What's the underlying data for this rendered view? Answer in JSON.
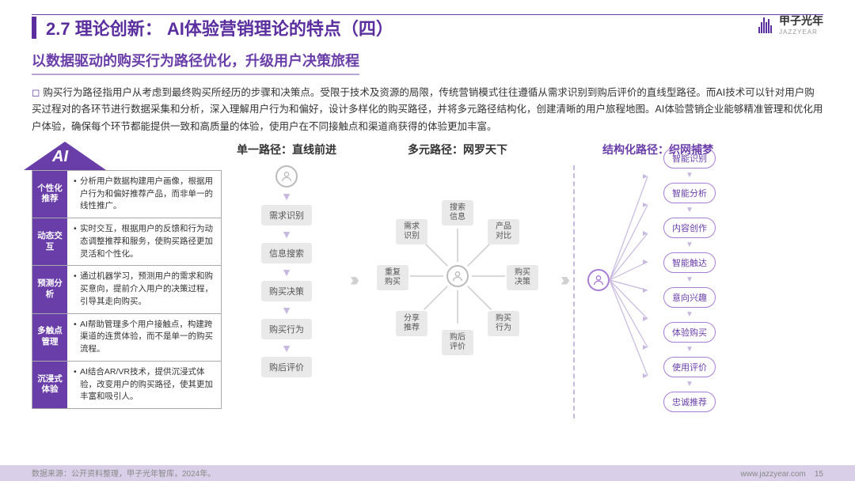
{
  "header": {
    "section_no": "2.7",
    "section_label": "理论创新：",
    "title_main": "AI体验营销理论的特点（四）"
  },
  "logo": {
    "brand": "甲子光年",
    "sub": "JAZZYEAR"
  },
  "subtitle": "以数据驱动的购买行为路径优化，升级用户决策旅程",
  "paragraph": "购买行为路径指用户从考虑到最终购买所经历的步骤和决策点。受限于技术及资源的局限，传统营销模式往往遵循从需求识别到购后评价的直线型路径。而AI技术可以针对用户购买过程对的各环节进行数据采集和分析，深入理解用户行为和偏好，设计多样化的购买路径，并将多元路径结构化，创建清晰的用户旅程地图。AI体验营销企业能够精准管理和优化用户体验，确保每个环节都能提供一致和高质量的体验，使用户在不同接触点和渠道商获得的体验更加丰富。",
  "ai_label": "AI",
  "features": [
    {
      "label": "个性化\n推荐",
      "desc": "分析用户数据构建用户画像，根据用户行为和偏好推荐产品，而非单一的线性推广。"
    },
    {
      "label": "动态交互",
      "desc": "实时交互，根据用户的反馈和行为动态调整推荐和服务，使购买路径更加灵活和个性化。"
    },
    {
      "label": "预测分析",
      "desc": "通过机器学习，预测用户的需求和购买意向，提前介入用户的决策过程，引导其走向购买。"
    },
    {
      "label": "多触点\n管理",
      "desc": "AI帮助管理多个用户接触点，构建跨渠道的连贯体验，而不是单一的购买流程。"
    },
    {
      "label": "沉浸式\n体验",
      "desc": "AI结合AR/VR技术，提供沉浸式体验，改变用户的购买路径，使其更加丰富和吸引人。"
    }
  ],
  "columns": {
    "c1": {
      "title": "单一路径：直线前进",
      "title_color": "#333",
      "nodes": [
        "需求识别",
        "信息搜索",
        "购买决策",
        "购买行为",
        "购后评价"
      ]
    },
    "c2": {
      "title": "多元路径：网罗天下",
      "title_color": "#333",
      "center": "user",
      "around": [
        "搜索信息",
        "产品对比",
        "购买决策",
        "购买行为",
        "购后评价",
        "分享推荐",
        "重复购买",
        "需求识别"
      ]
    },
    "c3": {
      "title": "结构化路径：织网捕梦",
      "title_color": "#6a3ea8",
      "nodes": [
        "智能识别",
        "智能分析",
        "内容创作",
        "智能触达",
        "意向兴趣",
        "体验购买",
        "使用评价",
        "忠诚推荐"
      ]
    }
  },
  "footer": {
    "source": "数据来源：公开资料整理，甲子光年智库，2024年。",
    "url": "www.jazzyear.com",
    "page": "15"
  },
  "colors": {
    "purple": "#6a3ea8",
    "purple_dark": "#5a2e9e",
    "node_gray": "#e9e9e9",
    "node_pur_border": "#a87fd6",
    "arrow_pur": "#c8b8e0",
    "chev_gray": "#d0d0d0",
    "bg": "#ffffff"
  }
}
